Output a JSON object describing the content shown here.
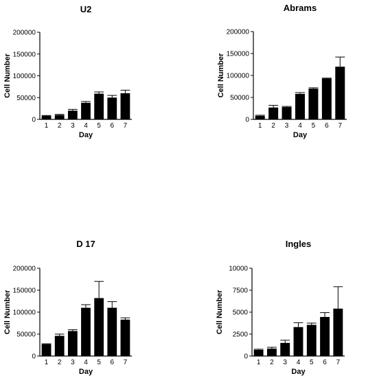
{
  "chart_data": [
    {
      "type": "bar",
      "title": "U2",
      "xlabel": "Day",
      "ylabel": "Cell Number",
      "categories": [
        "1",
        "2",
        "3",
        "4",
        "5",
        "6",
        "7"
      ],
      "values": [
        8000,
        10000,
        20000,
        38000,
        59000,
        50000,
        60000
      ],
      "errors": [
        1000,
        1500,
        3000,
        3000,
        4000,
        5000,
        7000
      ],
      "ylim": [
        0,
        200000
      ],
      "yticks": [
        "0",
        "50000",
        "100000",
        "150000",
        "200000"
      ]
    },
    {
      "type": "bar",
      "title": "Abrams",
      "xlabel": "Day",
      "ylabel": "Cell Number",
      "categories": [
        "1",
        "2",
        "3",
        "4",
        "5",
        "6",
        "7"
      ],
      "values": [
        8000,
        27000,
        28000,
        58000,
        70000,
        93000,
        120000
      ],
      "errors": [
        1500,
        5000,
        1500,
        3000,
        2000,
        1000,
        22000
      ],
      "ylim": [
        0,
        200000
      ],
      "yticks": [
        "0",
        "50000",
        "100000",
        "150000",
        "200000"
      ]
    },
    {
      "type": "bar",
      "title": "D 17",
      "xlabel": "Day",
      "ylabel": "Cell Number",
      "categories": [
        "1",
        "2",
        "3",
        "4",
        "5",
        "6",
        "7"
      ],
      "values": [
        27000,
        46000,
        57000,
        110000,
        132000,
        110000,
        83000
      ],
      "errors": [
        1000,
        4000,
        3000,
        7000,
        38000,
        14000,
        4000
      ],
      "ylim": [
        0,
        200000
      ],
      "yticks": [
        "0",
        "50000",
        "100000",
        "150000",
        "200000"
      ]
    },
    {
      "type": "bar",
      "title": "Ingles",
      "xlabel": "Day",
      "ylabel": "Cell Number",
      "categories": [
        "1",
        "2",
        "3",
        "4",
        "5",
        "6",
        "7"
      ],
      "values": [
        700,
        850,
        1500,
        3300,
        3550,
        4450,
        5400
      ],
      "errors": [
        80,
        150,
        300,
        500,
        200,
        500,
        2500
      ],
      "ylim": [
        0,
        10000
      ],
      "yticks": [
        "0",
        "2500",
        "5000",
        "7500",
        "10000"
      ]
    }
  ]
}
